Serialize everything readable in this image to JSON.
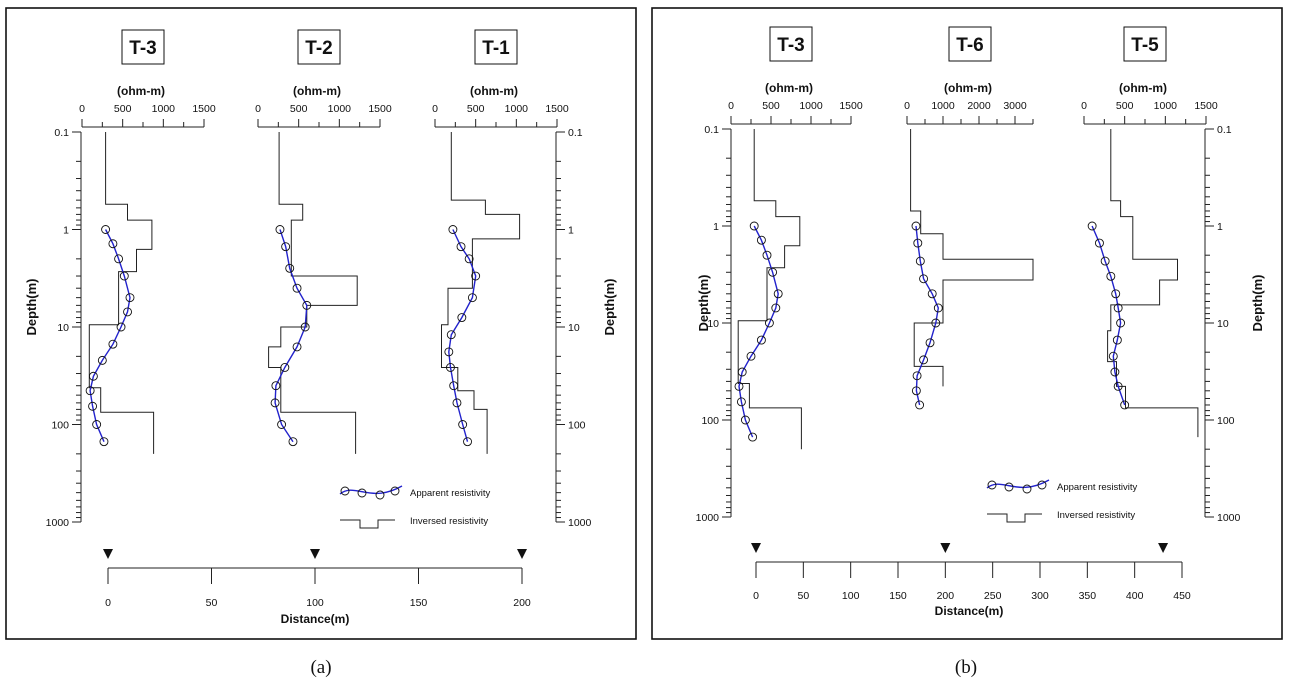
{
  "captions": [
    "(a)",
    "(b)"
  ],
  "chart_data": [
    {
      "type": "line",
      "panel": "(a)",
      "ylabel": "Depth(m)",
      "yscale": "log",
      "ylim": [
        0.1,
        1000
      ],
      "yticks": [
        "0.1",
        "1",
        "10",
        "100",
        "1000"
      ],
      "unit_label": "(ohm-m)",
      "legend": {
        "placement": "bottom-right",
        "entries": [
          "Apparent resistivity",
          "Inversed resistivity"
        ]
      },
      "distance_axis": {
        "xlabel": "Distance(m)",
        "ticks": [
          0,
          50,
          100,
          150,
          200
        ],
        "xlim": [
          0,
          200
        ],
        "markers": [
          0,
          100,
          200
        ]
      },
      "soundings": [
        {
          "name": "T-3",
          "xlim": [
            0,
            1500
          ],
          "xticks": [
            0,
            500,
            1000,
            1500
          ],
          "apparent": [
            [
              290,
              1
            ],
            [
              380,
              1.4
            ],
            [
              450,
              2
            ],
            [
              520,
              3
            ],
            [
              590,
              5
            ],
            [
              560,
              7
            ],
            [
              480,
              10
            ],
            [
              380,
              15
            ],
            [
              250,
              22
            ],
            [
              140,
              32
            ],
            [
              100,
              45
            ],
            [
              130,
              65
            ],
            [
              180,
              100
            ],
            [
              270,
              150
            ]
          ],
          "inversed": [
            [
              290,
              0.1
            ],
            [
              290,
              0.55
            ],
            [
              560,
              0.55
            ],
            [
              560,
              0.8
            ],
            [
              860,
              0.8
            ],
            [
              860,
              1.6
            ],
            [
              670,
              1.6
            ],
            [
              670,
              2.7
            ],
            [
              450,
              2.7
            ],
            [
              450,
              9.5
            ],
            [
              90,
              9.5
            ],
            [
              90,
              42
            ],
            [
              230,
              42
            ],
            [
              230,
              75
            ],
            [
              880,
              75
            ],
            [
              880,
              200
            ]
          ]
        },
        {
          "name": "T-2",
          "xlim": [
            0,
            1500
          ],
          "xticks": [
            0,
            500,
            1000,
            1500
          ],
          "apparent": [
            [
              270,
              1
            ],
            [
              340,
              1.5
            ],
            [
              390,
              2.5
            ],
            [
              480,
              4
            ],
            [
              600,
              6
            ],
            [
              580,
              10
            ],
            [
              480,
              16
            ],
            [
              330,
              26
            ],
            [
              220,
              40
            ],
            [
              210,
              60
            ],
            [
              290,
              100
            ],
            [
              430,
              150
            ]
          ],
          "inversed": [
            [
              260,
              0.1
            ],
            [
              260,
              0.55
            ],
            [
              550,
              0.55
            ],
            [
              550,
              0.8
            ],
            [
              410,
              0.8
            ],
            [
              410,
              3
            ],
            [
              1220,
              3
            ],
            [
              1220,
              6
            ],
            [
              600,
              6
            ],
            [
              600,
              10
            ],
            [
              280,
              10
            ],
            [
              280,
              16
            ],
            [
              130,
              16
            ],
            [
              130,
              26
            ],
            [
              280,
              26
            ],
            [
              280,
              75
            ],
            [
              1200,
              75
            ],
            [
              1200,
              200
            ]
          ]
        },
        {
          "name": "T-1",
          "xlim": [
            0,
            1500
          ],
          "xticks": [
            0,
            500,
            1000,
            1500
          ],
          "apparent": [
            [
              220,
              1
            ],
            [
              320,
              1.5
            ],
            [
              420,
              2
            ],
            [
              500,
              3
            ],
            [
              460,
              5
            ],
            [
              330,
              8
            ],
            [
              200,
              12
            ],
            [
              170,
              18
            ],
            [
              190,
              26
            ],
            [
              230,
              40
            ],
            [
              270,
              60
            ],
            [
              340,
              100
            ],
            [
              400,
              150
            ]
          ],
          "inversed": [
            [
              200,
              0.1
            ],
            [
              200,
              0.5
            ],
            [
              620,
              0.5
            ],
            [
              620,
              0.7
            ],
            [
              1040,
              0.7
            ],
            [
              1040,
              1.25
            ],
            [
              460,
              1.25
            ],
            [
              460,
              4
            ],
            [
              160,
              4
            ],
            [
              160,
              9.5
            ],
            [
              80,
              9.5
            ],
            [
              80,
              12
            ],
            [
              80,
              26
            ],
            [
              280,
              26
            ],
            [
              280,
              45
            ],
            [
              480,
              45
            ],
            [
              480,
              70
            ],
            [
              640,
              70
            ],
            [
              640,
              200
            ]
          ]
        }
      ]
    },
    {
      "type": "line",
      "panel": "(b)",
      "ylabel": "Depth(m)",
      "yscale": "log",
      "ylim": [
        0.1,
        1000
      ],
      "yticks": [
        "0.1",
        "1",
        "10",
        "100",
        "1000"
      ],
      "unit_label": "(ohm-m)",
      "legend": {
        "placement": "bottom-right",
        "entries": [
          "Apparent resistivity",
          "Inversed resistivity"
        ]
      },
      "distance_axis": {
        "xlabel": "Distance(m)",
        "ticks": [
          0,
          50,
          100,
          150,
          200,
          250,
          300,
          350,
          400,
          450
        ],
        "xlim": [
          0,
          450
        ],
        "markers": [
          0,
          200,
          430
        ]
      },
      "soundings": [
        {
          "name": "T-3",
          "xlim": [
            0,
            1500
          ],
          "xticks": [
            0,
            500,
            1000,
            1500
          ],
          "apparent": [
            [
              290,
              1
            ],
            [
              380,
              1.4
            ],
            [
              450,
              2
            ],
            [
              520,
              3
            ],
            [
              590,
              5
            ],
            [
              560,
              7
            ],
            [
              480,
              10
            ],
            [
              380,
              15
            ],
            [
              250,
              22
            ],
            [
              140,
              32
            ],
            [
              100,
              45
            ],
            [
              130,
              65
            ],
            [
              180,
              100
            ],
            [
              270,
              150
            ]
          ],
          "inversed": [
            [
              290,
              0.1
            ],
            [
              290,
              0.55
            ],
            [
              560,
              0.55
            ],
            [
              560,
              0.8
            ],
            [
              860,
              0.8
            ],
            [
              860,
              1.6
            ],
            [
              670,
              1.6
            ],
            [
              670,
              2.7
            ],
            [
              450,
              2.7
            ],
            [
              450,
              9.5
            ],
            [
              90,
              9.5
            ],
            [
              90,
              42
            ],
            [
              230,
              42
            ],
            [
              230,
              75
            ],
            [
              880,
              75
            ],
            [
              880,
              200
            ]
          ]
        },
        {
          "name": "T-6",
          "xlim": [
            0,
            3500
          ],
          "xticks": [
            0,
            1000,
            2000,
            3000
          ],
          "apparent": [
            [
              250,
              1
            ],
            [
              300,
              1.5
            ],
            [
              370,
              2.3
            ],
            [
              460,
              3.5
            ],
            [
              700,
              5
            ],
            [
              870,
              7
            ],
            [
              800,
              10
            ],
            [
              640,
              16
            ],
            [
              460,
              24
            ],
            [
              280,
              35
            ],
            [
              260,
              50
            ],
            [
              350,
              70
            ]
          ],
          "inversed": [
            [
              100,
              0.1
            ],
            [
              100,
              0.7
            ],
            [
              380,
              0.7
            ],
            [
              380,
              1.2
            ],
            [
              1000,
              1.2
            ],
            [
              1000,
              2.2
            ],
            [
              3500,
              2.2
            ],
            [
              3500,
              3.6
            ],
            [
              1000,
              3.6
            ],
            [
              1000,
              10
            ],
            [
              200,
              10
            ],
            [
              200,
              28
            ],
            [
              1000,
              28
            ],
            [
              1000,
              45
            ]
          ]
        },
        {
          "name": "T-5",
          "xlim": [
            0,
            1500
          ],
          "xticks": [
            0,
            500,
            1000,
            1500
          ],
          "apparent": [
            [
              100,
              1
            ],
            [
              190,
              1.5
            ],
            [
              260,
              2.3
            ],
            [
              330,
              3.3
            ],
            [
              390,
              5
            ],
            [
              420,
              7
            ],
            [
              450,
              10
            ],
            [
              410,
              15
            ],
            [
              360,
              22
            ],
            [
              380,
              32
            ],
            [
              420,
              45
            ],
            [
              500,
              70
            ]
          ],
          "inversed": [
            [
              330,
              0.1
            ],
            [
              330,
              0.55
            ],
            [
              450,
              0.55
            ],
            [
              450,
              0.8
            ],
            [
              600,
              0.8
            ],
            [
              600,
              2.2
            ],
            [
              1150,
              2.2
            ],
            [
              1150,
              3.6
            ],
            [
              930,
              3.6
            ],
            [
              930,
              6.5
            ],
            [
              330,
              6.5
            ],
            [
              330,
              12
            ],
            [
              290,
              12
            ],
            [
              290,
              25
            ],
            [
              400,
              25
            ],
            [
              400,
              45
            ],
            [
              510,
              45
            ],
            [
              510,
              75
            ],
            [
              1400,
              75
            ],
            [
              1400,
              150
            ]
          ]
        }
      ]
    }
  ]
}
